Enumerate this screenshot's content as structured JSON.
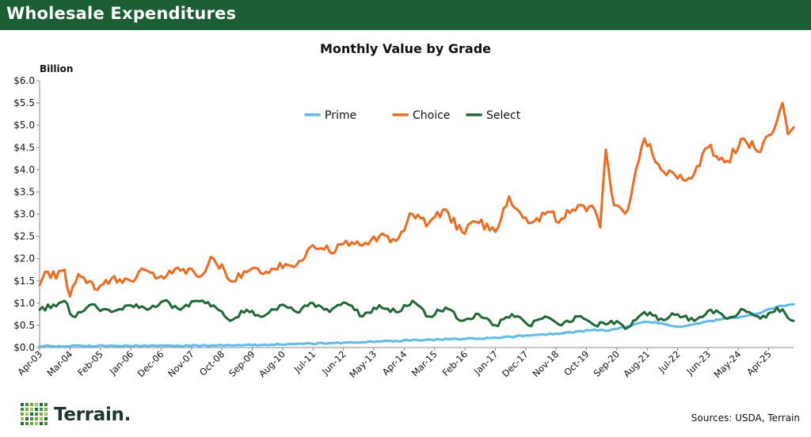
{
  "header": {
    "title": "Wholesale Expenditures"
  },
  "footer": {
    "logo_text": "Terrain.",
    "source": "Sources: USDA, Terrain"
  },
  "colors": {
    "header_bg": "#1b5e34",
    "prime": "#5bbcf0",
    "choice": "#f36a1c",
    "select": "#1f6b34"
  },
  "chart_data": {
    "type": "line",
    "title": "Monthly Value by Grade",
    "ylabel": "Billion",
    "xlabel": "",
    "ylim": [
      0,
      6
    ],
    "y_ticks": [
      "$0.0",
      "$0.5",
      "$1.0",
      "$1.5",
      "$2.0",
      "$2.5",
      "$3.0",
      "$3.5",
      "$4.0",
      "$4.5",
      "$5.0",
      "$5.5",
      "$6.0"
    ],
    "x_ticks": [
      "Apr-03",
      "Mar-04",
      "Feb-05",
      "Jan-06",
      "Dec-06",
      "Nov-07",
      "Oct-08",
      "Sep-09",
      "Aug-10",
      "Jul-11",
      "Jun-12",
      "May-13",
      "Apr-14",
      "Mar-15",
      "Feb-16",
      "Jan-17",
      "Dec-17",
      "Nov-18",
      "Oct-19",
      "Sep-20",
      "Aug-21",
      "Jul-22",
      "Jun-23",
      "May-24",
      "Apr-25"
    ],
    "x_start": "Apr-03",
    "x_end": "Jan-26",
    "x_step": "monthly",
    "grid": false,
    "legend_position": "top-center",
    "series": [
      {
        "name": "Prime",
        "color": "#5bbcf0",
        "points": [
          [
            "Apr-03",
            0.03
          ],
          [
            "Jan-05",
            0.04
          ],
          [
            "Jan-07",
            0.04
          ],
          [
            "Jan-09",
            0.05
          ],
          [
            "Jan-10",
            0.06
          ],
          [
            "Jan-11",
            0.08
          ],
          [
            "Jan-12",
            0.1
          ],
          [
            "Jan-13",
            0.12
          ],
          [
            "Jan-14",
            0.15
          ],
          [
            "Jan-15",
            0.18
          ],
          [
            "Jan-16",
            0.19
          ],
          [
            "Jan-17",
            0.22
          ],
          [
            "Jan-18",
            0.27
          ],
          [
            "Jan-19",
            0.32
          ],
          [
            "Jan-20",
            0.4
          ],
          [
            "Jun-20",
            0.38
          ],
          [
            "Jan-21",
            0.48
          ],
          [
            "Jul-21",
            0.58
          ],
          [
            "Jan-22",
            0.55
          ],
          [
            "Jul-22",
            0.47
          ],
          [
            "Jan-23",
            0.52
          ],
          [
            "Jul-23",
            0.6
          ],
          [
            "Jan-24",
            0.65
          ],
          [
            "Jul-24",
            0.7
          ],
          [
            "Jan-25",
            0.78
          ],
          [
            "Jul-25",
            0.92
          ],
          [
            "Jan-26",
            0.97
          ]
        ]
      },
      {
        "name": "Choice",
        "color": "#f36a1c",
        "points": [
          [
            "Apr-03",
            1.4
          ],
          [
            "Jul-03",
            1.7
          ],
          [
            "Oct-03",
            1.55
          ],
          [
            "Jan-04",
            1.75
          ],
          [
            "Mar-04",
            1.15
          ],
          [
            "Jun-04",
            1.65
          ],
          [
            "Sep-04",
            1.45
          ],
          [
            "Jan-05",
            1.3
          ],
          [
            "Jun-05",
            1.55
          ],
          [
            "Jan-06",
            1.5
          ],
          [
            "Jun-06",
            1.75
          ],
          [
            "Jan-07",
            1.55
          ],
          [
            "Jun-07",
            1.8
          ],
          [
            "Jan-08",
            1.6
          ],
          [
            "Jul-08",
            2.0
          ],
          [
            "Jan-09",
            1.5
          ],
          [
            "Jul-09",
            1.7
          ],
          [
            "Jan-10",
            1.65
          ],
          [
            "Jul-10",
            1.9
          ],
          [
            "Jan-11",
            1.85
          ],
          [
            "Jul-11",
            2.3
          ],
          [
            "Jan-12",
            2.15
          ],
          [
            "Jul-12",
            2.4
          ],
          [
            "Jan-13",
            2.3
          ],
          [
            "Jul-13",
            2.5
          ],
          [
            "Jan-14",
            2.4
          ],
          [
            "Jul-14",
            3.0
          ],
          [
            "Jan-15",
            2.8
          ],
          [
            "Jun-15",
            3.1
          ],
          [
            "Jan-16",
            2.6
          ],
          [
            "Jul-16",
            2.8
          ],
          [
            "Jan-17",
            2.6
          ],
          [
            "Jun-17",
            3.4
          ],
          [
            "Jan-18",
            2.8
          ],
          [
            "Jul-18",
            3.0
          ],
          [
            "Jan-19",
            2.9
          ],
          [
            "Jul-19",
            3.2
          ],
          [
            "Jan-20",
            3.1
          ],
          [
            "Mar-20",
            2.7
          ],
          [
            "May-20",
            4.45
          ],
          [
            "Aug-20",
            3.2
          ],
          [
            "Jan-21",
            3.1
          ],
          [
            "Jul-21",
            4.7
          ],
          [
            "Jan-22",
            4.0
          ],
          [
            "Jul-22",
            3.8
          ],
          [
            "Jan-23",
            3.9
          ],
          [
            "Jun-23",
            4.5
          ],
          [
            "Jan-24",
            4.2
          ],
          [
            "Jul-24",
            4.7
          ],
          [
            "Jan-25",
            4.4
          ],
          [
            "Jul-25",
            5.1
          ],
          [
            "Sep-25",
            5.5
          ],
          [
            "Nov-25",
            4.8
          ],
          [
            "Jan-26",
            4.95
          ]
        ]
      },
      {
        "name": "Select",
        "color": "#1f6b34",
        "points": [
          [
            "Apr-03",
            0.85
          ],
          [
            "Jan-04",
            1.05
          ],
          [
            "Apr-04",
            0.7
          ],
          [
            "Oct-04",
            0.95
          ],
          [
            "Jun-05",
            0.8
          ],
          [
            "Jan-06",
            0.95
          ],
          [
            "Jul-06",
            0.85
          ],
          [
            "Jan-07",
            1.05
          ],
          [
            "Jul-07",
            0.85
          ],
          [
            "Jan-08",
            1.05
          ],
          [
            "Jul-08",
            0.95
          ],
          [
            "Jan-09",
            0.6
          ],
          [
            "Jul-09",
            0.85
          ],
          [
            "Jan-10",
            0.7
          ],
          [
            "Jul-10",
            0.95
          ],
          [
            "Jan-11",
            0.8
          ],
          [
            "Jul-11",
            1.0
          ],
          [
            "Jan-12",
            0.8
          ],
          [
            "Jul-12",
            1.0
          ],
          [
            "Jan-13",
            0.7
          ],
          [
            "Jul-13",
            0.95
          ],
          [
            "Jan-14",
            0.8
          ],
          [
            "Jul-14",
            1.05
          ],
          [
            "Jan-15",
            0.7
          ],
          [
            "Jul-15",
            0.9
          ],
          [
            "Jan-16",
            0.6
          ],
          [
            "Jul-16",
            0.75
          ],
          [
            "Jan-17",
            0.5
          ],
          [
            "Jul-17",
            0.75
          ],
          [
            "Jan-18",
            0.5
          ],
          [
            "Jul-18",
            0.7
          ],
          [
            "Jan-19",
            0.5
          ],
          [
            "Jul-19",
            0.7
          ],
          [
            "Jan-20",
            0.5
          ],
          [
            "Jul-20",
            0.6
          ],
          [
            "Jan-21",
            0.45
          ],
          [
            "Jul-21",
            0.8
          ],
          [
            "Jan-22",
            0.65
          ],
          [
            "Jul-22",
            0.75
          ],
          [
            "Jan-23",
            0.6
          ],
          [
            "Jul-23",
            0.85
          ],
          [
            "Jan-24",
            0.65
          ],
          [
            "Jul-24",
            0.85
          ],
          [
            "Jan-25",
            0.65
          ],
          [
            "Jul-25",
            0.9
          ],
          [
            "Jan-26",
            0.6
          ]
        ]
      }
    ]
  }
}
